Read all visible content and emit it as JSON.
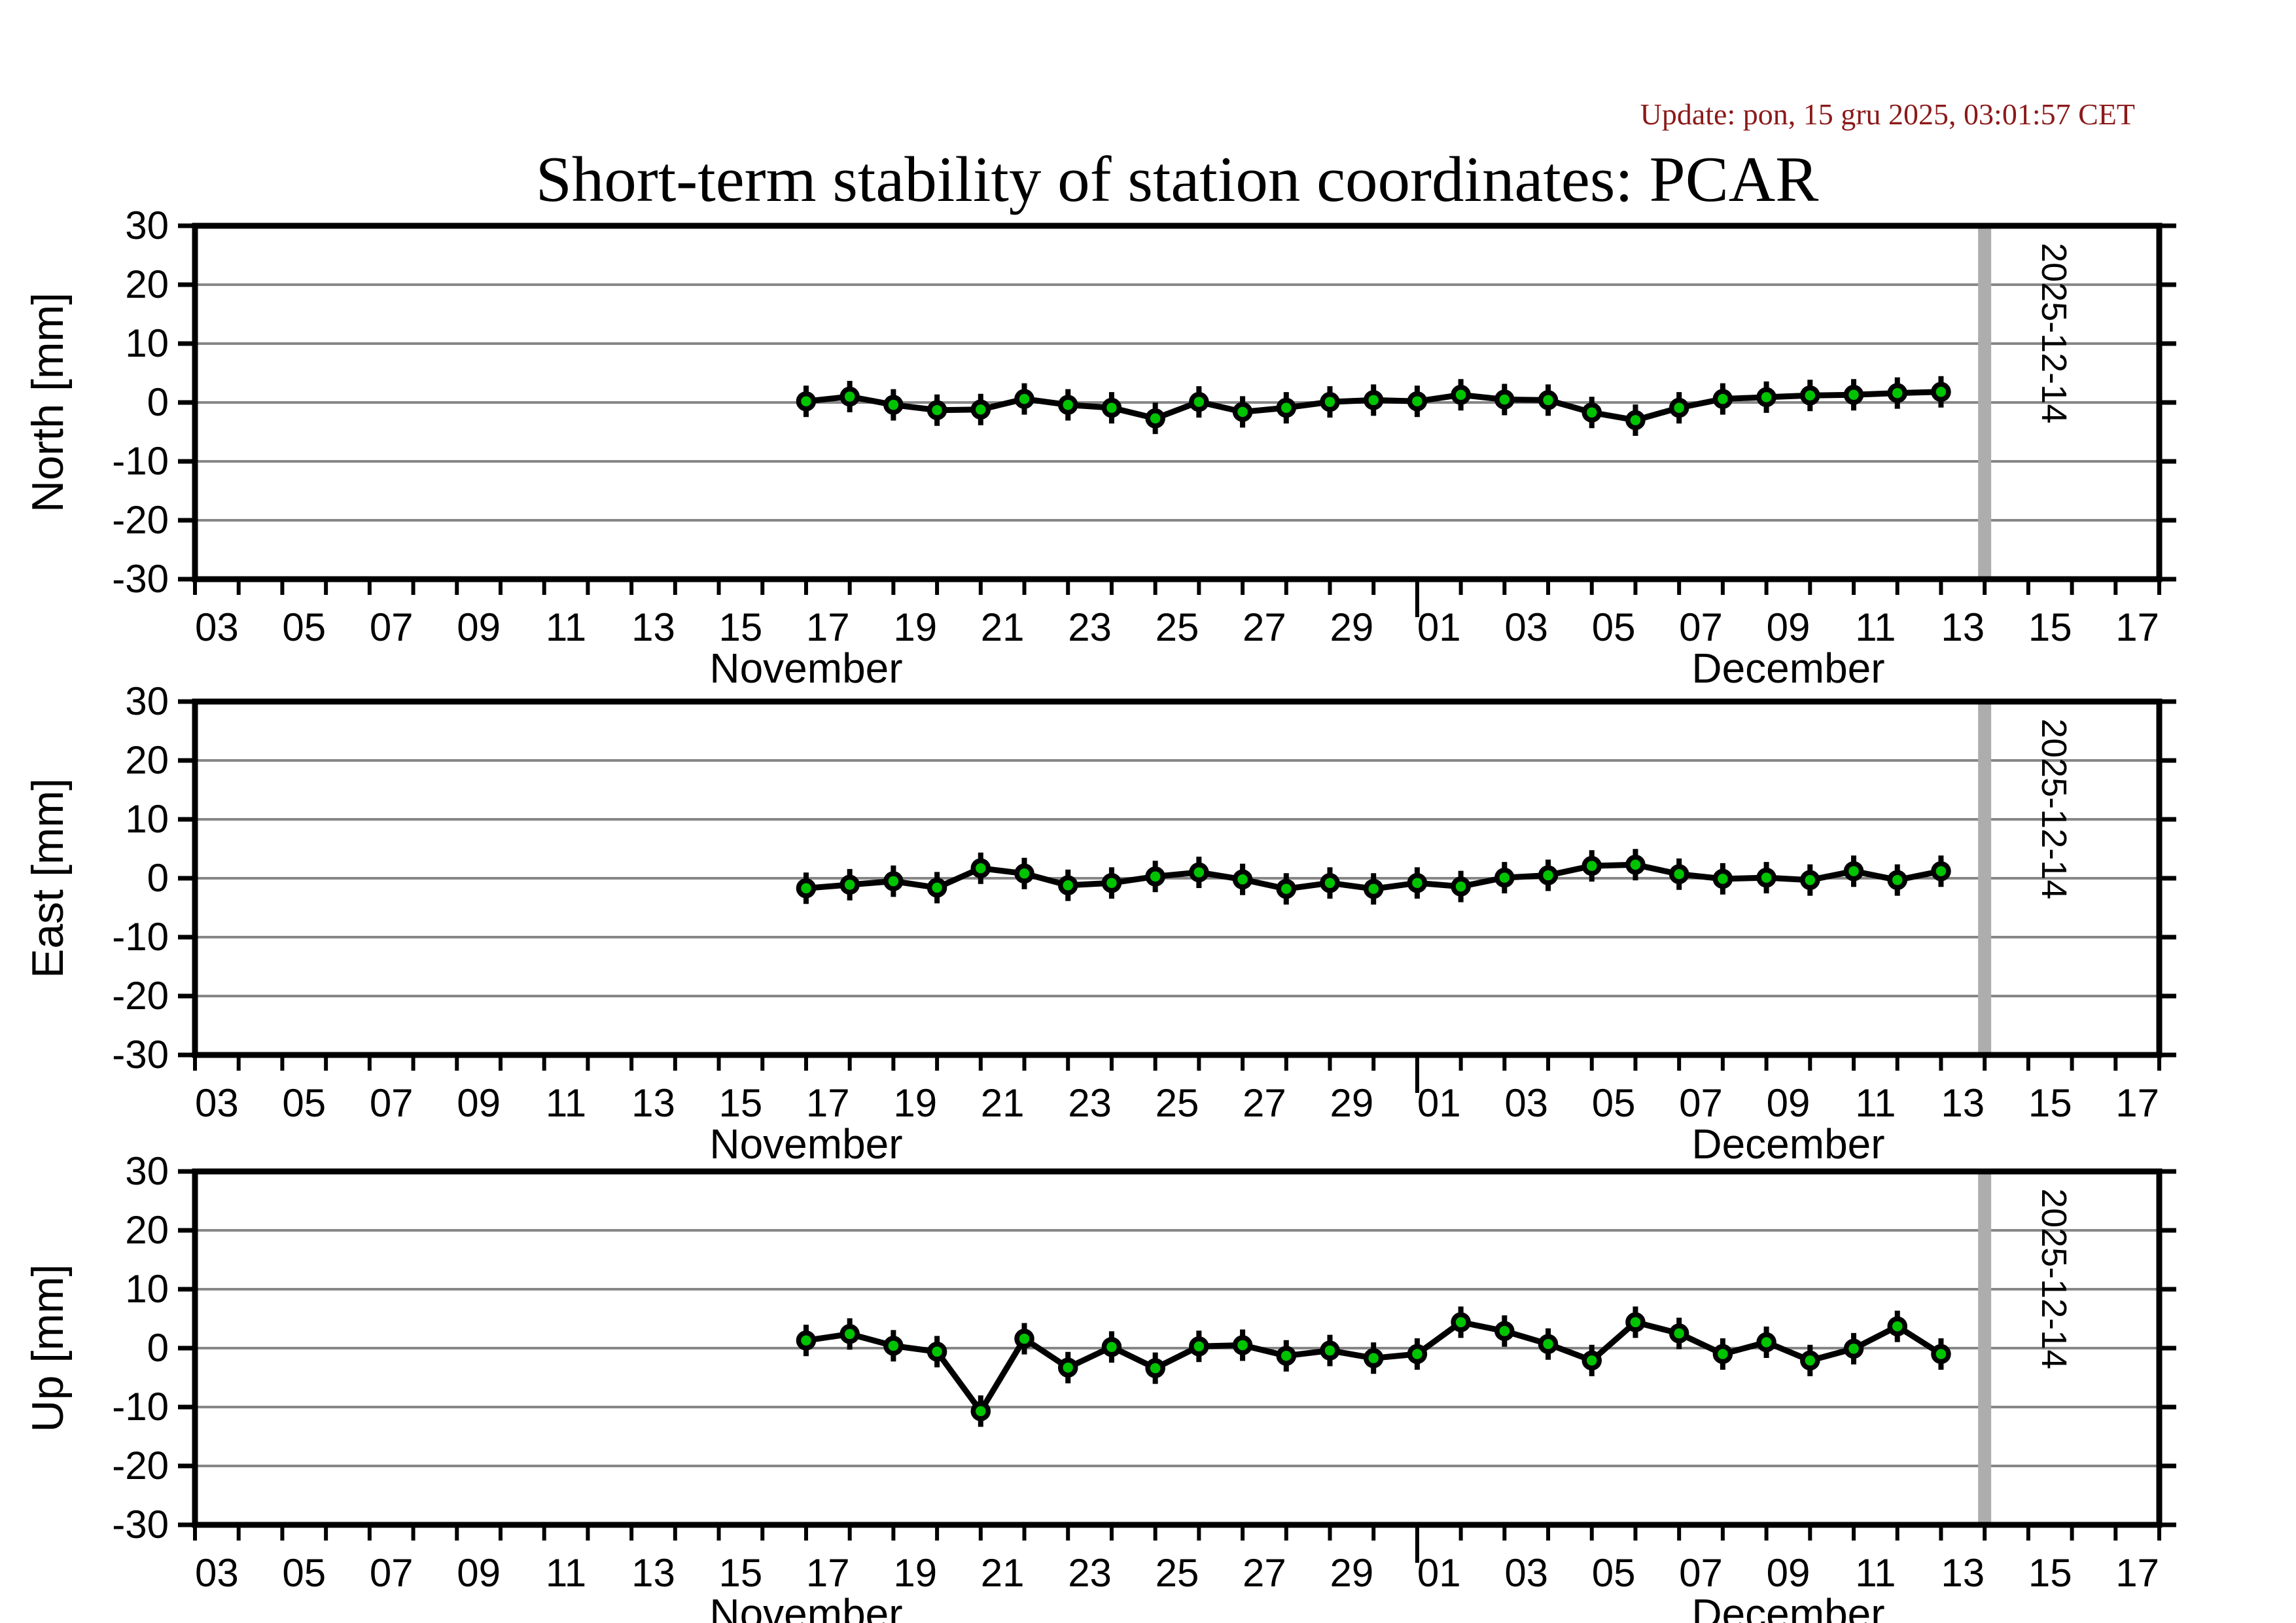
{
  "header": {
    "title": "Short-term stability of station coordinates: PCAR"
  },
  "update": {
    "text": "Update: pon, 15 gru 2025, 03:01:57 CET"
  },
  "colors": {
    "marker_fill": "#00c400",
    "line": "#000000",
    "frame": "#000000",
    "grid": "#878787",
    "band": "#adadad",
    "update_text": "#8b1a1a"
  },
  "chart_data": {
    "type": "line",
    "title": "Short-term stability of station coordinates: PCAR",
    "layout_hint": "three stacked panels (North, East, Up) sharing the same daily time axis; horizontal gridlines every 10 mm; gray vertical event band at 2025-12-14",
    "x": [
      "2025-11-17",
      "2025-11-18",
      "2025-11-19",
      "2025-11-20",
      "2025-11-21",
      "2025-11-22",
      "2025-11-23",
      "2025-11-24",
      "2025-11-25",
      "2025-11-26",
      "2025-11-27",
      "2025-11-28",
      "2025-11-29",
      "2025-11-30",
      "2025-12-01",
      "2025-12-02",
      "2025-12-03",
      "2025-12-04",
      "2025-12-05",
      "2025-12-06",
      "2025-12-07",
      "2025-12-08",
      "2025-12-09",
      "2025-12-10",
      "2025-12-11",
      "2025-12-12",
      "2025-12-13"
    ],
    "series": [
      {
        "name": "North [mm]",
        "values": [
          0.2,
          1.0,
          -0.4,
          -1.3,
          -1.2,
          0.6,
          -0.4,
          -0.9,
          -2.7,
          0.1,
          -1.6,
          -0.9,
          0.1,
          0.4,
          0.2,
          1.3,
          0.5,
          0.4,
          -1.7,
          -3.0,
          -0.9,
          0.6,
          0.9,
          1.2,
          1.3,
          1.6,
          1.8
        ]
      },
      {
        "name": "East [mm]",
        "values": [
          -1.7,
          -1.1,
          -0.5,
          -1.6,
          1.7,
          0.8,
          -1.2,
          -0.8,
          0.3,
          1.0,
          -0.2,
          -1.8,
          -0.8,
          -1.8,
          -0.8,
          -1.4,
          0.1,
          0.5,
          2.1,
          2.3,
          0.7,
          -0.1,
          0.1,
          -0.3,
          1.2,
          -0.3,
          1.2
        ]
      },
      {
        "name": "Up [mm]",
        "values": [
          1.3,
          2.4,
          0.4,
          -0.6,
          -10.7,
          1.6,
          -3.3,
          0.2,
          -3.4,
          0.3,
          0.5,
          -1.3,
          -0.4,
          -1.7,
          -1.0,
          4.4,
          2.9,
          0.7,
          -2.1,
          4.4,
          2.5,
          -1.0,
          1.0,
          -2.1,
          -0.1,
          3.7,
          -1.0
        ]
      }
    ],
    "ylim": [
      -30,
      30
    ],
    "ytick_values": [
      30,
      20,
      10,
      0,
      -10,
      -20,
      -30
    ],
    "grid": "on",
    "legend": "none",
    "xaxis": {
      "start": "2025-11-03",
      "end": "2025-12-18",
      "tick_interval_days": 1,
      "label_interval_days": 2,
      "november_labels": [
        "03",
        "05",
        "07",
        "09",
        "11",
        "13",
        "15",
        "17",
        "19",
        "21",
        "23",
        "25",
        "27",
        "29"
      ],
      "december_labels": [
        "01",
        "03",
        "05",
        "07",
        "09",
        "11",
        "13",
        "15",
        "17"
      ],
      "month_labels": [
        "November",
        "December"
      ]
    },
    "event_band": {
      "date": "2025-12-14",
      "label": "2025-12-14"
    }
  }
}
